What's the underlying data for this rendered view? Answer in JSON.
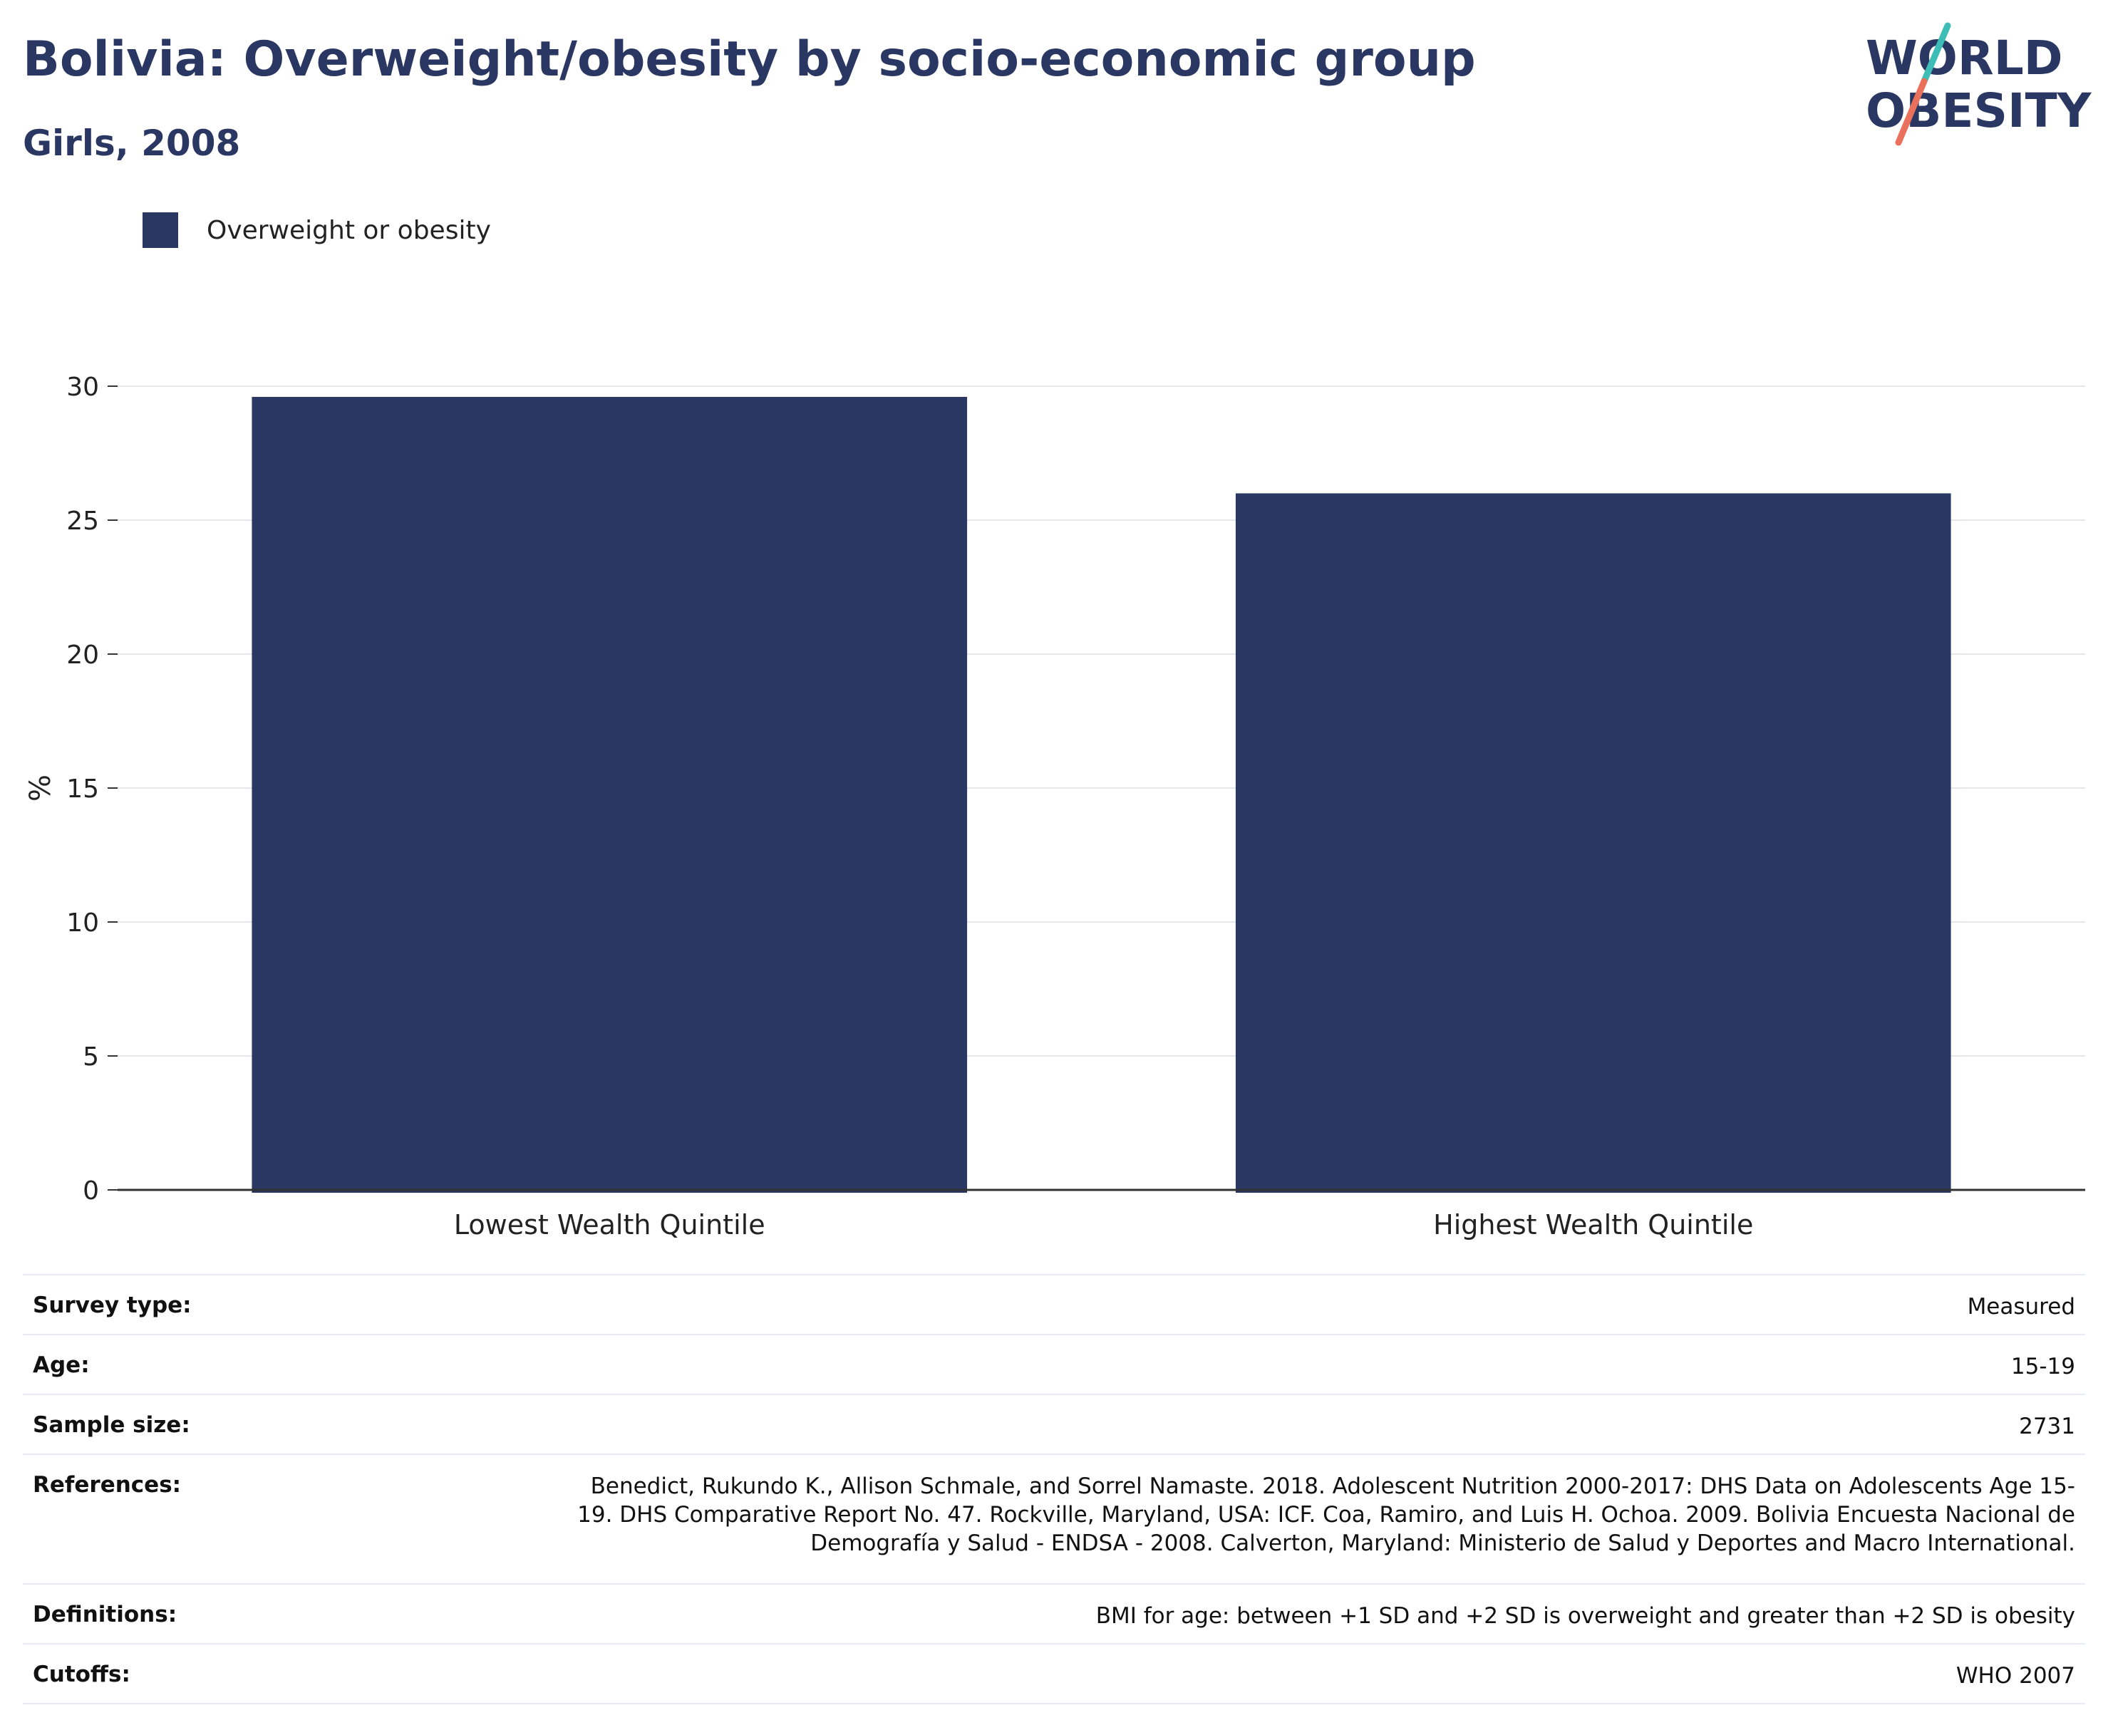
{
  "header": {
    "title": "Bolivia: Overweight/obesity by socio-economic group",
    "subtitle": "Girls, 2008"
  },
  "logo": {
    "line1": "WORLD",
    "line2": "OBESITY",
    "colors": {
      "text": "#2a3763",
      "slash_top": "#3dbdb5",
      "slash_bottom": "#e9715c"
    }
  },
  "legend": {
    "label": "Overweight or obesity",
    "color": "#2a3763"
  },
  "colors": {
    "bar": "#2a3763",
    "grid": "#e6e8f0",
    "axis": "#333333",
    "title": "#2a3763"
  },
  "chart_data": {
    "type": "bar",
    "categories": [
      "Lowest Wealth Quintile",
      "Highest Wealth Quintile"
    ],
    "series": [
      {
        "name": "Overweight or obesity",
        "values": [
          29.6,
          26.0
        ]
      }
    ],
    "ylabel": "%",
    "ylim": [
      0,
      30
    ],
    "yticks": [
      "0",
      "5",
      "10",
      "15",
      "20",
      "25",
      "30"
    ],
    "grid": true,
    "legend_position": "top-left"
  },
  "info": {
    "survey_type": {
      "label": "Survey type:",
      "value": "Measured"
    },
    "age": {
      "label": "Age:",
      "value": "15-19"
    },
    "sample_size": {
      "label": "Sample size:",
      "value": "2731"
    },
    "references": {
      "label": "References:",
      "lines": [
        "Benedict, Rukundo K., Allison Schmale, and Sorrel Namaste. 2018. Adolescent Nutrition 2000-2017: DHS Data on Adolescents Age 15-",
        "19. DHS Comparative Report No. 47. Rockville, Maryland, USA: ICF. Coa, Ramiro, and Luis H. Ochoa. 2009. Bolivia Encuesta Nacional de",
        "Demografía y Salud - ENDSA - 2008. Calverton, Maryland: Ministerio de Salud y Deportes and Macro International."
      ]
    },
    "definitions": {
      "label": "Definitions:",
      "value": "BMI for age: between +1 SD and +2 SD is overweight and greater than +2 SD is obesity"
    },
    "cutoffs": {
      "label": "Cutoffs:",
      "value": "WHO 2007"
    }
  }
}
